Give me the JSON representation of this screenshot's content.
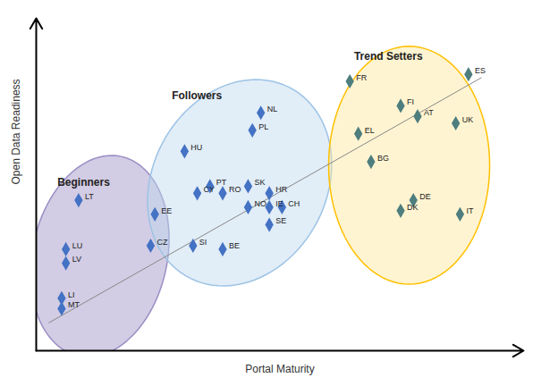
{
  "chart_data": {
    "type": "scatter",
    "xlabel": "Portal Maturity",
    "ylabel": "Open Data Readiness",
    "xlim": [
      0,
      11.5
    ],
    "ylim": [
      2.5,
      12.0
    ],
    "tick_labels": false,
    "grid": false,
    "trend_line": {
      "x": [
        0.3,
        10.5
      ],
      "y": [
        3.3,
        10.3
      ],
      "color": "#888888"
    },
    "series": [
      {
        "name": "Beginners",
        "color": "#4472C4",
        "marker": "diamond",
        "label_position": [
          0.5,
          7.2
        ],
        "ellipse": {
          "center": [
            1.5,
            5.2
          ],
          "width": 3.2,
          "height": 5.8,
          "angle": -8,
          "fill_color": "#9B8EC4",
          "edge_color": "#9B8EC4"
        },
        "labels": [
          "LT",
          "EE",
          "CZ",
          "LU",
          "LV",
          "LI",
          "MT"
        ],
        "x": [
          1.0,
          2.8,
          2.7,
          0.7,
          0.7,
          0.6,
          0.6
        ],
        "y": [
          6.8,
          6.4,
          5.5,
          5.4,
          5.0,
          4.0,
          3.7
        ]
      },
      {
        "name": "Followers",
        "color": "#4472C4",
        "marker": "diamond",
        "label_position": [
          3.2,
          9.7
        ],
        "ellipse": {
          "center": [
            4.8,
            7.3
          ],
          "width": 4.2,
          "height": 6.0,
          "angle": -15,
          "fill_color": "#BDD7EE",
          "edge_color": "#9DC3E6"
        },
        "labels": [
          "NL",
          "PL",
          "HU",
          "PT",
          "CY",
          "RO",
          "SK",
          "HR",
          "NO",
          "IE",
          "CH",
          "SE",
          "SI",
          "BE"
        ],
        "x": [
          5.3,
          5.1,
          3.5,
          4.1,
          3.8,
          4.4,
          5.0,
          5.5,
          5.0,
          5.5,
          5.8,
          5.5,
          3.7,
          4.4
        ],
        "y": [
          9.3,
          8.8,
          8.2,
          7.2,
          7.0,
          7.0,
          7.2,
          7.0,
          6.6,
          6.6,
          6.6,
          6.1,
          5.5,
          5.4
        ]
      },
      {
        "name": "Trend Setters",
        "color": "#4E7E7E",
        "marker": "diamond",
        "label_position": [
          7.5,
          10.8
        ],
        "ellipse": {
          "center": [
            8.8,
            7.8
          ],
          "width": 3.8,
          "height": 6.8,
          "angle": 0,
          "fill_color": "#FFE699",
          "edge_color": "#FFC000"
        },
        "labels": [
          "ES",
          "FR",
          "FI",
          "AT",
          "UK",
          "EL",
          "BG",
          "DE",
          "DK",
          "IT"
        ],
        "x": [
          10.2,
          7.4,
          8.6,
          9.0,
          9.9,
          7.6,
          7.9,
          8.9,
          8.6,
          10.0
        ],
        "y": [
          10.4,
          10.2,
          9.5,
          9.2,
          9.0,
          8.7,
          7.9,
          6.8,
          6.5,
          6.4
        ]
      }
    ]
  }
}
